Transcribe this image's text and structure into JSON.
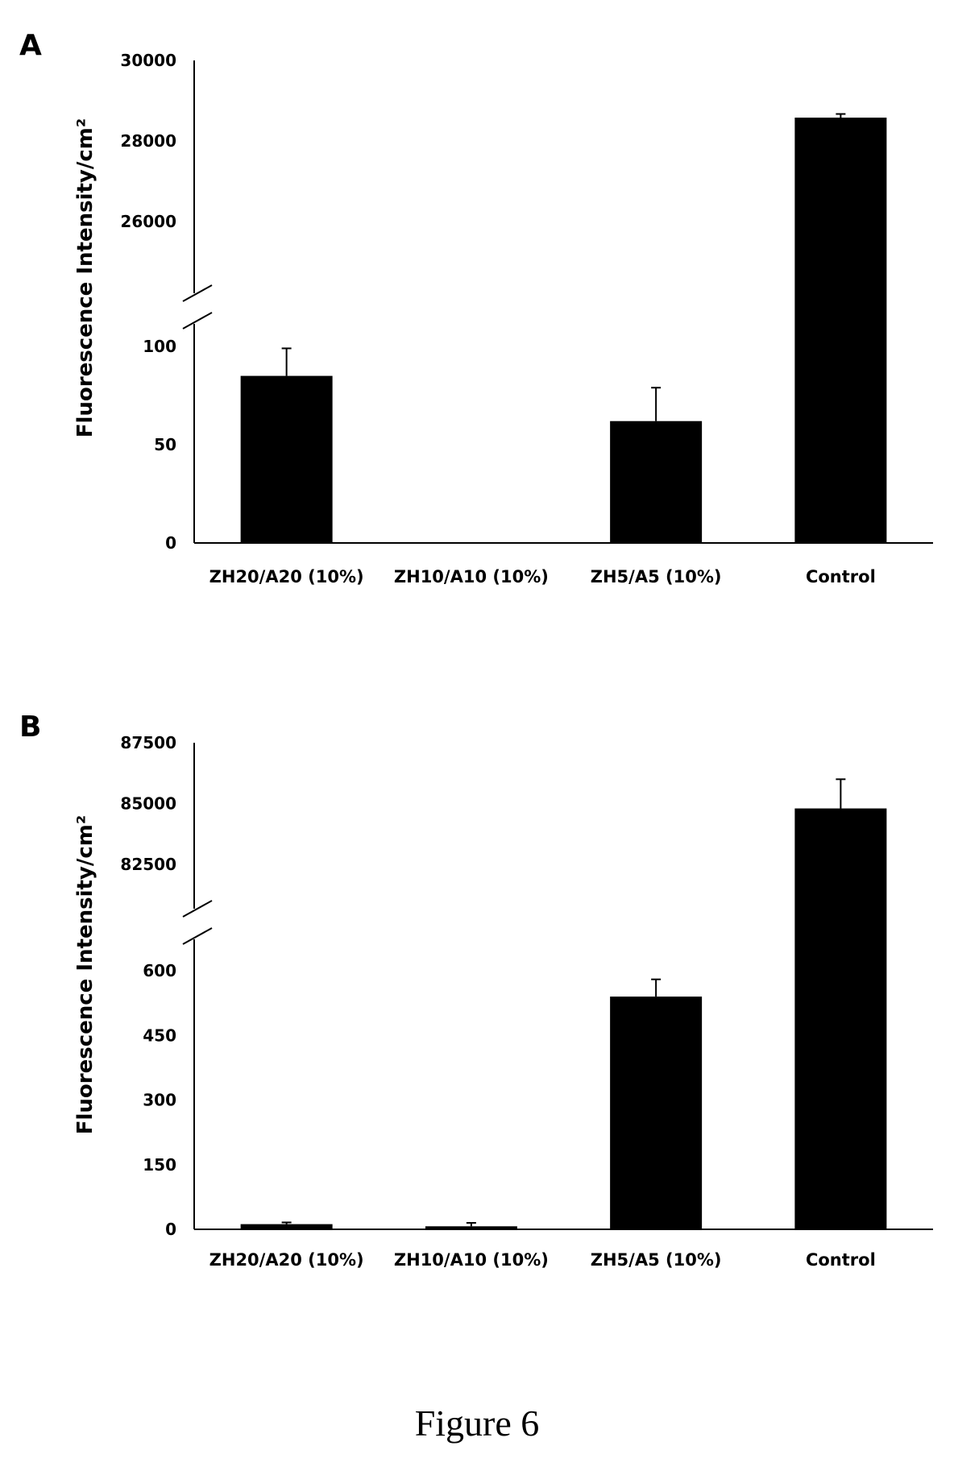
{
  "figure_caption": "Figure 6",
  "chart_data": [
    {
      "panel_label": "A",
      "type": "bar",
      "ylabel": "Fluorescence Intensity/cm²",
      "categories": [
        "ZH20/A20 (10%)",
        "ZH10/A10 (10%)",
        "ZH5/A5 (10%)",
        "Control"
      ],
      "values": [
        85,
        0,
        62,
        28580
      ],
      "errors": [
        14,
        0,
        17,
        90
      ],
      "axis_break": true,
      "lower_segment": {
        "ylim": [
          0,
          150
        ],
        "ticks": [
          "0",
          "50",
          "100"
        ]
      },
      "upper_segment": {
        "ylim": [
          24000,
          30000
        ],
        "ticks": [
          "26000",
          "28000",
          "30000"
        ]
      },
      "bar_color": "#000000",
      "grid": false
    },
    {
      "panel_label": "B",
      "type": "bar",
      "ylabel": "Fluorescence Intensity/cm²",
      "categories": [
        "ZH20/A20 (10%)",
        "ZH10/A10 (10%)",
        "ZH5/A5 (10%)",
        "Control"
      ],
      "values": [
        12,
        7,
        540,
        84800
      ],
      "errors": [
        4,
        8,
        40,
        1200
      ],
      "axis_break": true,
      "lower_segment": {
        "ylim": [
          0,
          700
        ],
        "ticks": [
          "0",
          "150",
          "300",
          "450",
          "600"
        ]
      },
      "upper_segment": {
        "ylim": [
          80000,
          87500
        ],
        "ticks": [
          "82500",
          "85000",
          "87500"
        ]
      },
      "bar_color": "#000000",
      "grid": false
    }
  ]
}
